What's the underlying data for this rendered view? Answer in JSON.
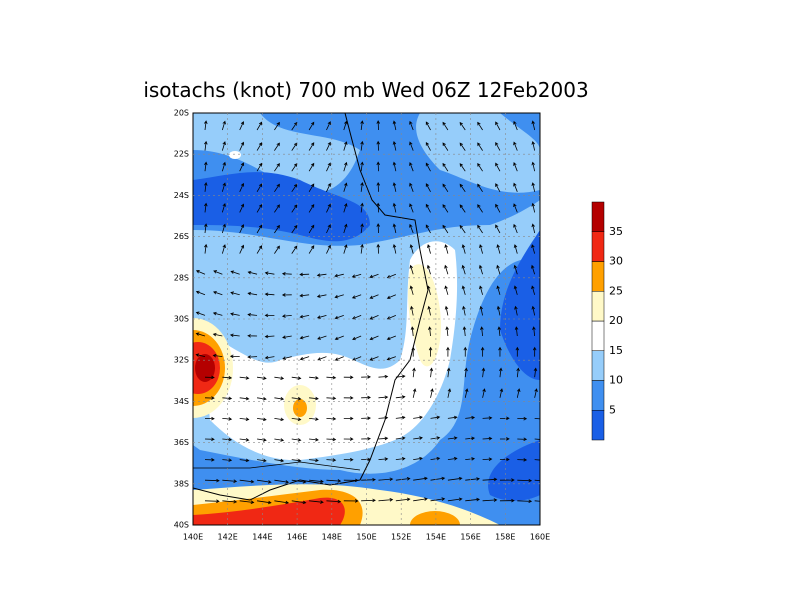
{
  "title": "isotachs (knot) 700 mb Wed 06Z 12Feb2003",
  "lat_labels": [
    "20S",
    "22S",
    "24S",
    "26S",
    "28S",
    "30S",
    "32S",
    "34S",
    "36S",
    "38S",
    "40S"
  ],
  "lon_labels": [
    "140E",
    "142E",
    "144E",
    "146E",
    "148E",
    "150E",
    "152E",
    "154E",
    "156E",
    "158E",
    "160E"
  ],
  "colorbar": {
    "labels": [
      5,
      10,
      15,
      20,
      25,
      30,
      35
    ],
    "colors": [
      "#1a5fe6",
      "#3f8ff0",
      "#96cdfa",
      "#ffffff",
      "#fff9c8",
      "#ffa000",
      "#f02814",
      "#b40000"
    ]
  }
}
